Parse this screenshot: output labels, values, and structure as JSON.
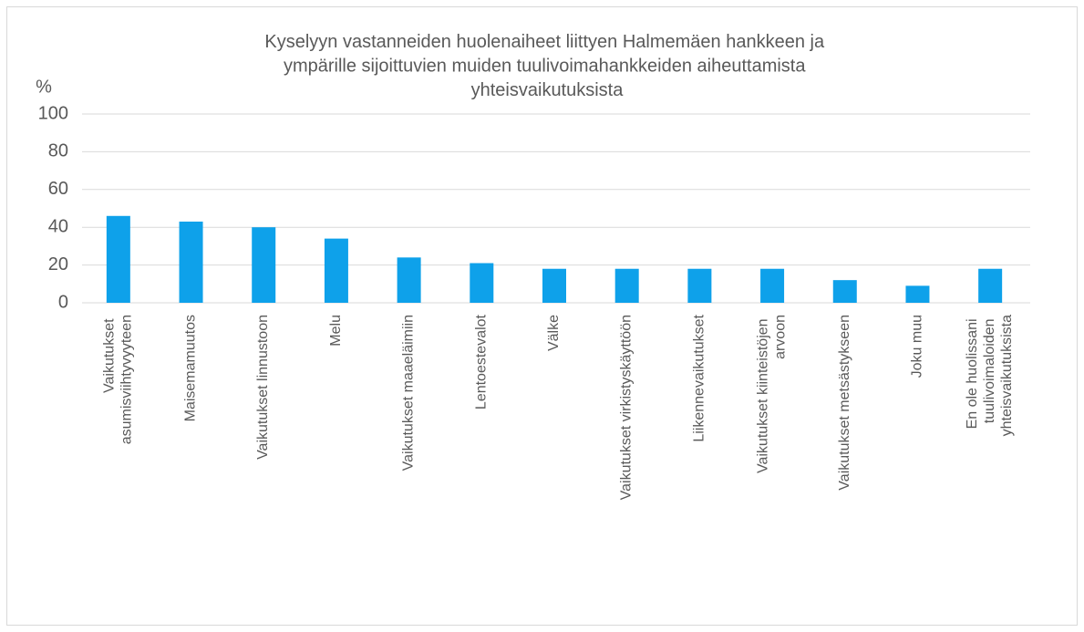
{
  "chart_data": {
    "type": "bar",
    "title": "Kyselyyn vastanneiden huolenaiheet liittyen Halmemäen hankkeen ja ympärille sijoittuvien muiden tuulivoimahankkeiden aiheuttamista yhteisvaikutuksista",
    "y_label": "%",
    "categories": [
      "Vaikutukset asumisviihtyvyyteen",
      "Maisemamuutos",
      "Vaikutukset linnustoon",
      "Melu",
      "Vaikutukset maaeläimiin",
      "Lentoestevalot",
      "Välke",
      "Vaikutukset virkistyskäyttöön",
      "Liikennevaikutukset",
      "Vaikutukset kiinteistöjen arvoon",
      "Vaikutukset metsästykseen",
      "Joku muu",
      "En ole huolissani tuulivoimaloiden yhteisvaikutuksista"
    ],
    "values": [
      46,
      43,
      40,
      34,
      24,
      21,
      18,
      18,
      18,
      18,
      12,
      9,
      18
    ],
    "color": "#0ea1ea",
    "ylim": [
      0,
      100
    ],
    "yticks": [
      0,
      20,
      40,
      60,
      80,
      100
    ],
    "grid": true
  }
}
